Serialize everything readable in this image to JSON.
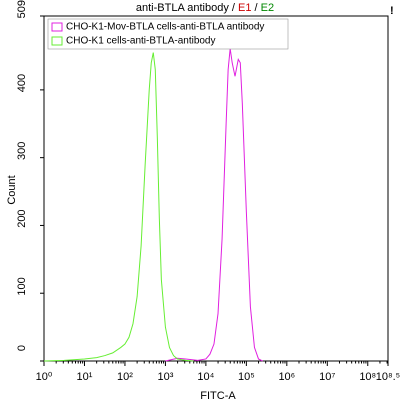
{
  "chart_data": {
    "type": "line",
    "title_parts": [
      {
        "text": "anti-BTLA antibody",
        "color": "#000000"
      },
      {
        "text": " / ",
        "color": "#000000"
      },
      {
        "text": "E1",
        "color": "#cc0000"
      },
      {
        "text": " / ",
        "color": "#000000"
      },
      {
        "text": "E2",
        "color": "#008800"
      }
    ],
    "warning_mark": "!",
    "xlabel": "FITC-A",
    "ylabel": "Count",
    "xscale": "log",
    "xlim": [
      1,
      316227766
    ],
    "xticks": [
      {
        "value": 1,
        "label": "10⁰"
      },
      {
        "value": 10,
        "label": "10¹"
      },
      {
        "value": 100,
        "label": "10²"
      },
      {
        "value": 1000,
        "label": "10³"
      },
      {
        "value": 10000,
        "label": "10⁴"
      },
      {
        "value": 100000,
        "label": "10⁵"
      },
      {
        "value": 1000000,
        "label": "10⁶"
      },
      {
        "value": 10000000,
        "label": "10⁷"
      },
      {
        "value": 100000000,
        "label": "10⁸"
      },
      {
        "value": 316227766,
        "label": "10⁸.⁵"
      }
    ],
    "ylim": [
      0,
      509
    ],
    "yticks": [
      0,
      100,
      200,
      300,
      400,
      509
    ],
    "legend": "upper left",
    "series": [
      {
        "name": "CHO-K1-Mov-BTLA cells-anti-BTLA antibody",
        "color": "#e020e0",
        "x": [
          1000,
          1995,
          3162,
          6310,
          10000,
          12589,
          15849,
          19953,
          25119,
          31623,
          35481,
          39811,
          44668,
          52481,
          63096,
          70795,
          79433,
          100000,
          125893,
          158489,
          199526,
          251189
        ],
        "values": [
          0,
          4,
          3,
          1,
          3,
          10,
          25,
          70,
          180,
          350,
          430,
          461,
          440,
          420,
          445,
          440,
          380,
          220,
          80,
          20,
          3,
          0
        ]
      },
      {
        "name": "CHO-K1 cells-anti-BTLA-antibody",
        "color": "#66ee33",
        "x": [
          1,
          3.16,
          10,
          20,
          32,
          50,
          79,
          100,
          126,
          158,
          200,
          251,
          316,
          398,
          447,
          501,
          562,
          631,
          708,
          794,
          1000,
          1259,
          1585,
          1995,
          3162,
          5012
        ],
        "values": [
          0,
          1,
          3,
          5,
          8,
          12,
          20,
          25,
          35,
          55,
          95,
          170,
          290,
          400,
          440,
          455,
          430,
          330,
          210,
          120,
          50,
          20,
          8,
          3,
          1,
          0
        ]
      }
    ]
  }
}
